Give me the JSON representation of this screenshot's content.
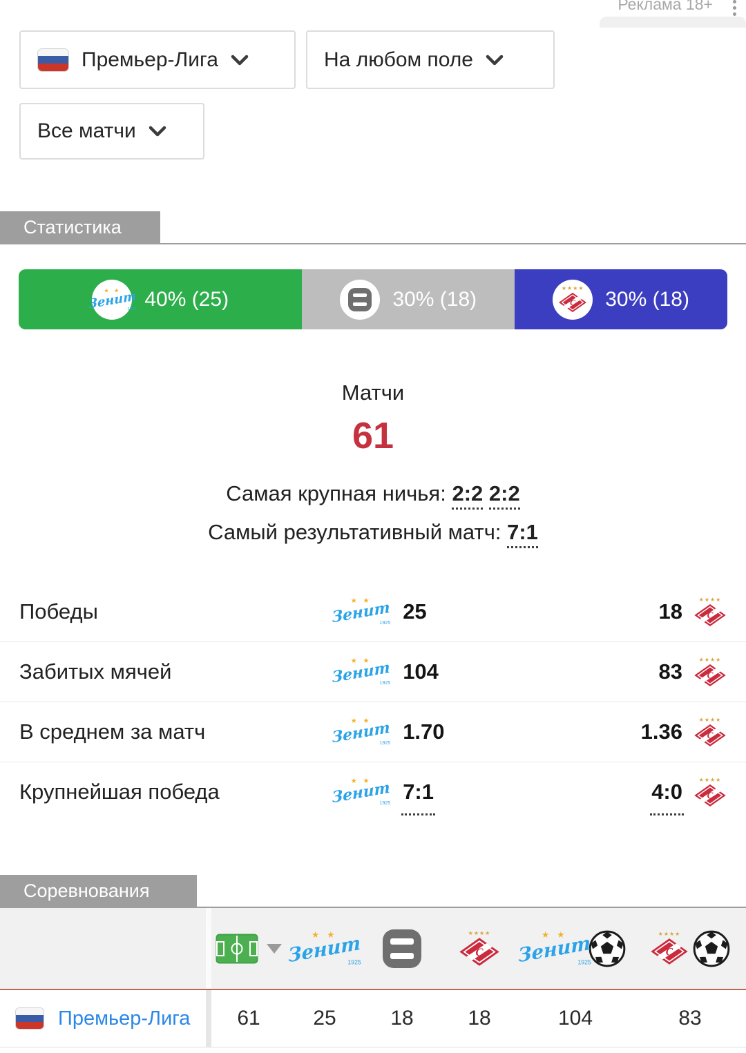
{
  "ad": {
    "label": "Реклама 18+"
  },
  "filters": {
    "league": {
      "label": "Премьер-Лига"
    },
    "venue": {
      "label": "На любом поле"
    },
    "matches": {
      "label": "Все матчи"
    }
  },
  "sections": {
    "statistics": "Статистика",
    "competitions": "Соревнования"
  },
  "results_bar": {
    "segments": [
      {
        "name": "zenit-wins",
        "label": "40% (25)",
        "percent": 40,
        "count": 25,
        "color": "#2cae4a"
      },
      {
        "name": "draws",
        "label": "30% (18)",
        "percent": 30,
        "count": 18,
        "color": "#bdbdbd"
      },
      {
        "name": "spartak-wins",
        "label": "30% (18)",
        "percent": 30,
        "count": 18,
        "color": "#3b3ec0"
      }
    ]
  },
  "summary": {
    "matches_label": "Матчи",
    "matches_total": "61",
    "biggest_draw_label": "Самая крупная ничья:",
    "biggest_draw_1": "2:2",
    "biggest_draw_2": "2:2",
    "highest_scoring_label": "Самый результативный матч:",
    "highest_scoring_value": "7:1"
  },
  "stats": {
    "rows": [
      {
        "label": "Победы",
        "zenit": "25",
        "spartak": "18"
      },
      {
        "label": "Забитых мячей",
        "zenit": "104",
        "spartak": "83"
      },
      {
        "label": "В среднем за матч",
        "zenit": "1.70",
        "spartak": "1.36"
      },
      {
        "label": "Крупнейшая победа",
        "zenit": "7:1",
        "spartak": "4:0"
      }
    ]
  },
  "competitions": {
    "columns": [
      "venue-filter",
      "matches",
      "zenit-wins",
      "draws",
      "spartak-wins",
      "zenit-goals",
      "spartak-goals"
    ],
    "row": {
      "league": "Премьер-Лига",
      "values": [
        "61",
        "25",
        "18",
        "18",
        "104",
        "83"
      ]
    }
  },
  "teams": {
    "zenit": {
      "name": "Зенит",
      "year": "1925"
    },
    "spartak": {
      "letter": "C"
    }
  }
}
